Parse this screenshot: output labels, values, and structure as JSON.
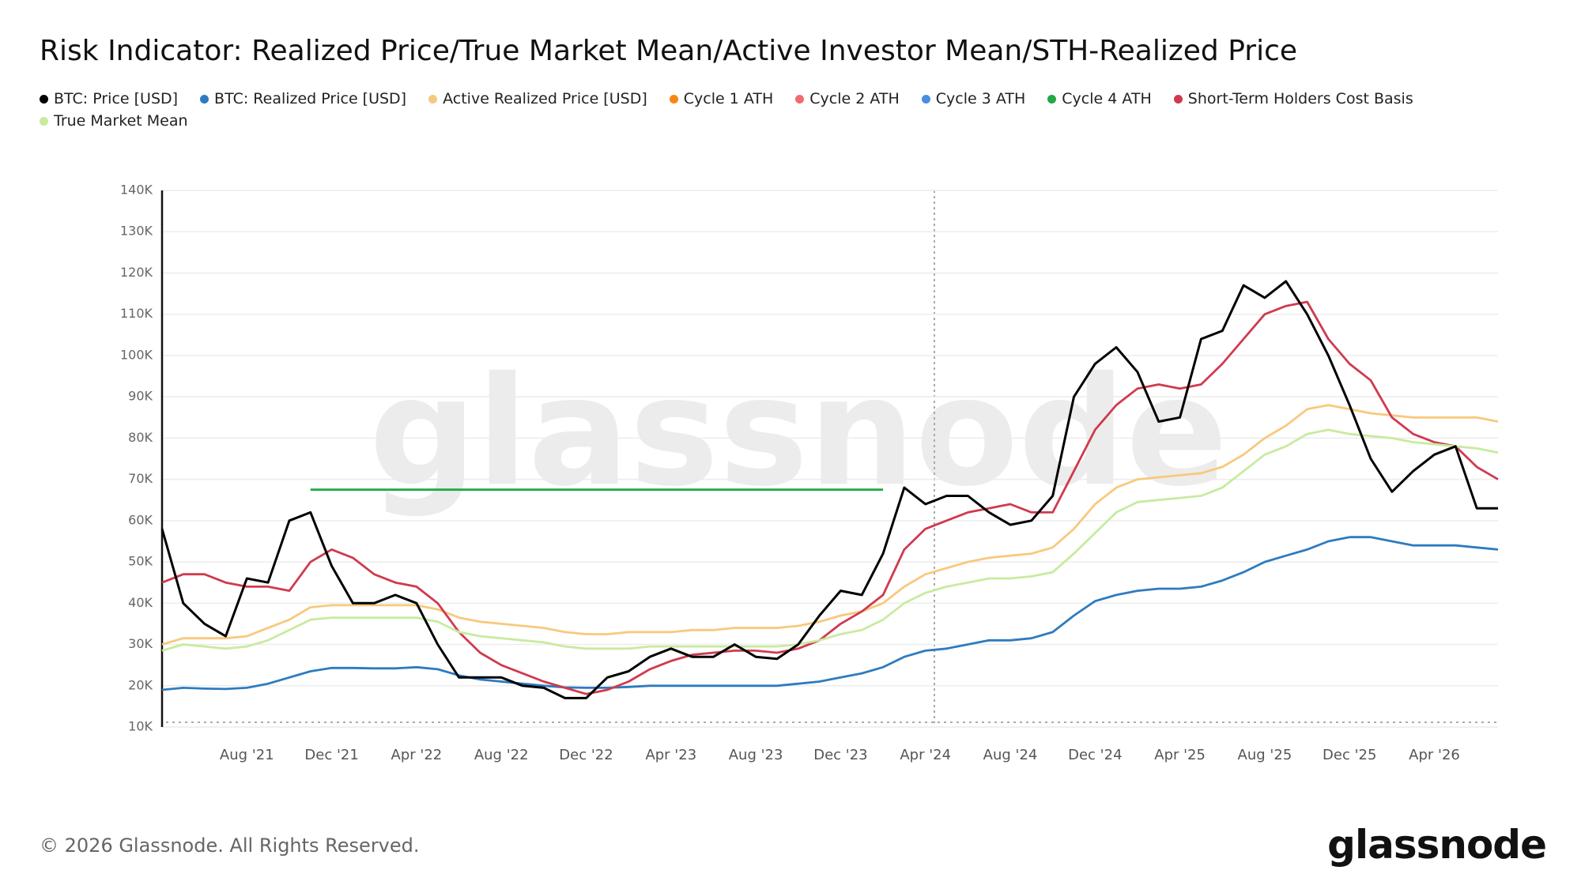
{
  "chart_data": {
    "type": "line",
    "title": "Risk Indicator: Realized Price/True Market Mean/Active Investor Mean/STH-Realized Price",
    "watermark": "glassnode",
    "footer": "© 2026 Glassnode. All Rights Reserved.",
    "logo": "glassnode",
    "categories": [
      null,
      null,
      null,
      null,
      "Aug '21",
      null,
      null,
      null,
      "Dec '21",
      null,
      null,
      null,
      "Apr '22",
      null,
      null,
      null,
      "Aug '22",
      null,
      null,
      null,
      "Dec '22",
      null,
      null,
      null,
      "Apr '23",
      null,
      null,
      null,
      "Aug '23",
      null,
      null,
      null,
      "Dec '23",
      null,
      null,
      null,
      "Apr '24",
      null,
      null,
      null,
      "Aug '24",
      null,
      null,
      null,
      "Dec '24",
      null,
      null,
      null,
      "Apr '25",
      null,
      null,
      null,
      "Aug '25",
      null,
      null,
      null,
      "Dec '25",
      null,
      null,
      null,
      "Apr '26",
      null,
      null,
      null
    ],
    "ylim": [
      10000,
      140000
    ],
    "yticks": [
      {
        "value": 10000,
        "label": "10K"
      },
      {
        "value": 20000,
        "label": "20K"
      },
      {
        "value": 30000,
        "label": "30K"
      },
      {
        "value": 40000,
        "label": "40K"
      },
      {
        "value": 50000,
        "label": "50K"
      },
      {
        "value": 60000,
        "label": "60K"
      },
      {
        "value": 70000,
        "label": "70K"
      },
      {
        "value": 80000,
        "label": "80K"
      },
      {
        "value": 90000,
        "label": "90K"
      },
      {
        "value": 100000,
        "label": "100K"
      },
      {
        "value": 110000,
        "label": "110K"
      },
      {
        "value": 120000,
        "label": "120K"
      },
      {
        "value": 130000,
        "label": "130K"
      },
      {
        "value": 140000,
        "label": "140K"
      }
    ],
    "grid": true,
    "series": [
      {
        "name": "BTC: Price [USD]",
        "color": "#000000",
        "values": [
          58000,
          40000,
          35000,
          32000,
          46000,
          45000,
          60000,
          62000,
          49000,
          40000,
          40000,
          42000,
          40000,
          30000,
          22000,
          22000,
          22000,
          20000,
          19500,
          17000,
          17000,
          22000,
          23500,
          27000,
          29000,
          27000,
          27000,
          30000,
          27000,
          26500,
          30000,
          37000,
          43000,
          42000,
          52000,
          68000,
          64000,
          66000,
          66000,
          62000,
          59000,
          60000,
          66000,
          90000,
          98000,
          102000,
          96000,
          84000,
          85000,
          104000,
          106000,
          117000,
          114000,
          118000,
          110000,
          100000,
          88000,
          75000,
          67000,
          72000,
          76000,
          78000,
          63000,
          63000
        ]
      },
      {
        "name": "BTC: Realized Price [USD]",
        "color": "#2e7bbf",
        "values": [
          19000,
          19500,
          19300,
          19200,
          19500,
          20500,
          22000,
          23500,
          24300,
          24300,
          24200,
          24200,
          24500,
          24000,
          22500,
          21500,
          21000,
          20500,
          20000,
          19600,
          19500,
          19500,
          19700,
          20000,
          20000,
          20000,
          20000,
          20000,
          20000,
          20000,
          20500,
          21000,
          22000,
          23000,
          24500,
          27000,
          28500,
          29000,
          30000,
          31000,
          31000,
          31500,
          33000,
          37000,
          40500,
          42000,
          43000,
          43500,
          43500,
          44000,
          45500,
          47500,
          50000,
          51500,
          53000,
          55000,
          56000,
          56000,
          55000,
          54000,
          54000,
          54000,
          53500,
          53000
        ]
      },
      {
        "name": "Active Realized Price [USD]",
        "color": "#f7c97e",
        "values": [
          30000,
          31500,
          31500,
          31500,
          32000,
          34000,
          36000,
          39000,
          39500,
          39500,
          39500,
          39500,
          39500,
          38500,
          36500,
          35500,
          35000,
          34500,
          34000,
          33000,
          32500,
          32500,
          33000,
          33000,
          33000,
          33500,
          33500,
          34000,
          34000,
          34000,
          34500,
          35500,
          37000,
          38000,
          40000,
          44000,
          47000,
          48500,
          50000,
          51000,
          51500,
          52000,
          53500,
          58000,
          64000,
          68000,
          70000,
          70500,
          71000,
          71500,
          73000,
          76000,
          80000,
          83000,
          87000,
          88000,
          87000,
          86000,
          85500,
          85000,
          85000,
          85000,
          85000,
          84000
        ]
      },
      {
        "name": "Cycle 1 ATH",
        "color": "#f7870f",
        "values": [
          null,
          null,
          null,
          null,
          null,
          null,
          null,
          null,
          null,
          null,
          null,
          null,
          null,
          null,
          null,
          null,
          null,
          null,
          null,
          null,
          null,
          null,
          null,
          null,
          null,
          null,
          null,
          null,
          null,
          null,
          null,
          null,
          null,
          null,
          null,
          null,
          null,
          null,
          null,
          null,
          null,
          null,
          null,
          null,
          null,
          null,
          null,
          null,
          null,
          null,
          null,
          null,
          null,
          null,
          null,
          null,
          null,
          null,
          null,
          null,
          null,
          null,
          null,
          null
        ]
      },
      {
        "name": "Cycle 2 ATH",
        "color": "#f26b6b",
        "values": [
          null,
          null,
          null,
          null,
          null,
          null,
          null,
          null,
          null,
          null,
          null,
          null,
          null,
          null,
          null,
          null,
          null,
          null,
          null,
          null,
          null,
          null,
          null,
          null,
          null,
          null,
          null,
          null,
          null,
          null,
          null,
          null,
          null,
          null,
          null,
          null,
          null,
          null,
          null,
          null,
          null,
          null,
          null,
          null,
          null,
          null,
          null,
          null,
          null,
          null,
          null,
          null,
          null,
          null,
          null,
          null,
          null,
          null,
          null,
          null,
          null,
          null,
          null,
          null
        ]
      },
      {
        "name": "Cycle 3 ATH",
        "color": "#4a8de0",
        "values": [
          null,
          null,
          null,
          null,
          null,
          null,
          null,
          null,
          null,
          null,
          null,
          null,
          null,
          null,
          null,
          null,
          null,
          null,
          null,
          null,
          null,
          null,
          null,
          null,
          null,
          null,
          null,
          null,
          null,
          null,
          null,
          null,
          null,
          null,
          null,
          null,
          null,
          null,
          null,
          null,
          null,
          null,
          null,
          null,
          null,
          null,
          null,
          null,
          null,
          null,
          null,
          null,
          null,
          null,
          null,
          null,
          null,
          null,
          null,
          null,
          null,
          null,
          null,
          null
        ]
      },
      {
        "name": "Cycle 4 ATH",
        "color": "#22a844",
        "values": [
          null,
          null,
          null,
          null,
          null,
          null,
          null,
          67500,
          67500,
          67500,
          67500,
          67500,
          67500,
          67500,
          67500,
          67500,
          67500,
          67500,
          67500,
          67500,
          67500,
          67500,
          67500,
          67500,
          67500,
          67500,
          67500,
          67500,
          67500,
          67500,
          67500,
          67500,
          67500,
          67500,
          67500,
          null,
          null,
          null,
          null,
          null,
          null,
          null,
          null,
          null,
          null,
          null,
          null,
          null,
          null,
          null,
          null,
          null,
          null,
          null,
          null,
          null,
          null,
          null,
          null,
          null,
          null,
          null,
          null,
          null
        ]
      },
      {
        "name": "Short-Term Holders Cost Basis",
        "color": "#d03a4e",
        "values": [
          45000,
          47000,
          47000,
          45000,
          44000,
          44000,
          43000,
          50000,
          53000,
          51000,
          47000,
          45000,
          44000,
          40000,
          33000,
          28000,
          25000,
          23000,
          21000,
          19500,
          18000,
          19000,
          21000,
          24000,
          26000,
          27500,
          28000,
          28500,
          28500,
          28000,
          29000,
          31000,
          35000,
          38000,
          42000,
          53000,
          58000,
          60000,
          62000,
          63000,
          64000,
          62000,
          62000,
          72000,
          82000,
          88000,
          92000,
          93000,
          92000,
          93000,
          98000,
          104000,
          110000,
          112000,
          113000,
          104000,
          98000,
          94000,
          85000,
          81000,
          79000,
          78000,
          73000,
          70000
        ]
      },
      {
        "name": "True Market Mean",
        "color": "#c8eb9f",
        "values": [
          28500,
          30000,
          29500,
          29000,
          29500,
          31000,
          33500,
          36000,
          36500,
          36500,
          36500,
          36500,
          36500,
          35500,
          33000,
          32000,
          31500,
          31000,
          30500,
          29500,
          29000,
          29000,
          29000,
          29500,
          29500,
          29500,
          29500,
          29500,
          29500,
          29500,
          30000,
          31000,
          32500,
          33500,
          36000,
          40000,
          42500,
          44000,
          45000,
          46000,
          46000,
          46500,
          47500,
          52000,
          57000,
          62000,
          64500,
          65000,
          65500,
          66000,
          68000,
          72000,
          76000,
          78000,
          81000,
          82000,
          81000,
          80500,
          80000,
          79000,
          78500,
          78000,
          77500,
          76500
        ]
      }
    ]
  }
}
